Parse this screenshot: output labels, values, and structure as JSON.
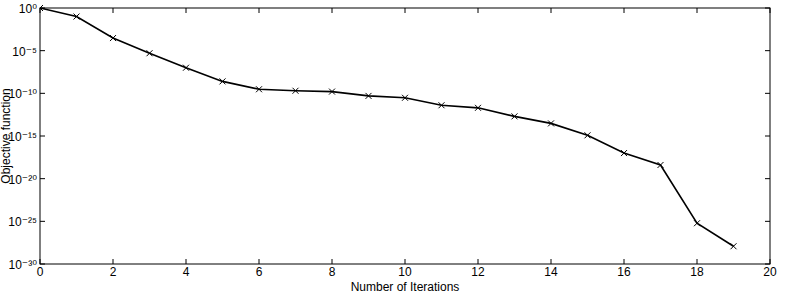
{
  "chart_data": {
    "type": "line",
    "x_label": "Number of Iterations",
    "y_label": "Objective function",
    "x": [
      0,
      1,
      2,
      3,
      4,
      5,
      6,
      7,
      8,
      9,
      10,
      11,
      12,
      13,
      14,
      15,
      16,
      17,
      18,
      19
    ],
    "values": [
      1,
      0.1,
      0.0003,
      5e-06,
      1e-07,
      2.5e-09,
      3e-10,
      2e-10,
      1.6e-10,
      5e-11,
      3e-11,
      4e-12,
      2e-12,
      2e-13,
      3e-14,
      1.2e-15,
      1e-17,
      4e-19,
      6e-26,
      1.2e-28
    ],
    "color": "#000000",
    "marker": "x",
    "line_style": "solid",
    "log": "y",
    "grid": false,
    "xlim": [
      0,
      20
    ],
    "xticks": [
      0,
      2,
      4,
      6,
      8,
      10,
      12,
      14,
      16,
      18,
      20
    ],
    "ylim": [
      1e-30,
      1
    ],
    "yticks": [
      {
        "value": 1e-30,
        "label": "10⁻³⁰"
      },
      {
        "value": 1e-25,
        "label": "10⁻²⁵"
      },
      {
        "value": 1e-20,
        "label": "10⁻²⁰"
      },
      {
        "value": 1e-15,
        "label": "10⁻¹⁵"
      },
      {
        "value": 1e-10,
        "label": "10⁻¹⁰"
      },
      {
        "value": 1e-05,
        "label": "10⁻⁵"
      },
      {
        "value": 1,
        "label": "10⁰"
      }
    ]
  }
}
